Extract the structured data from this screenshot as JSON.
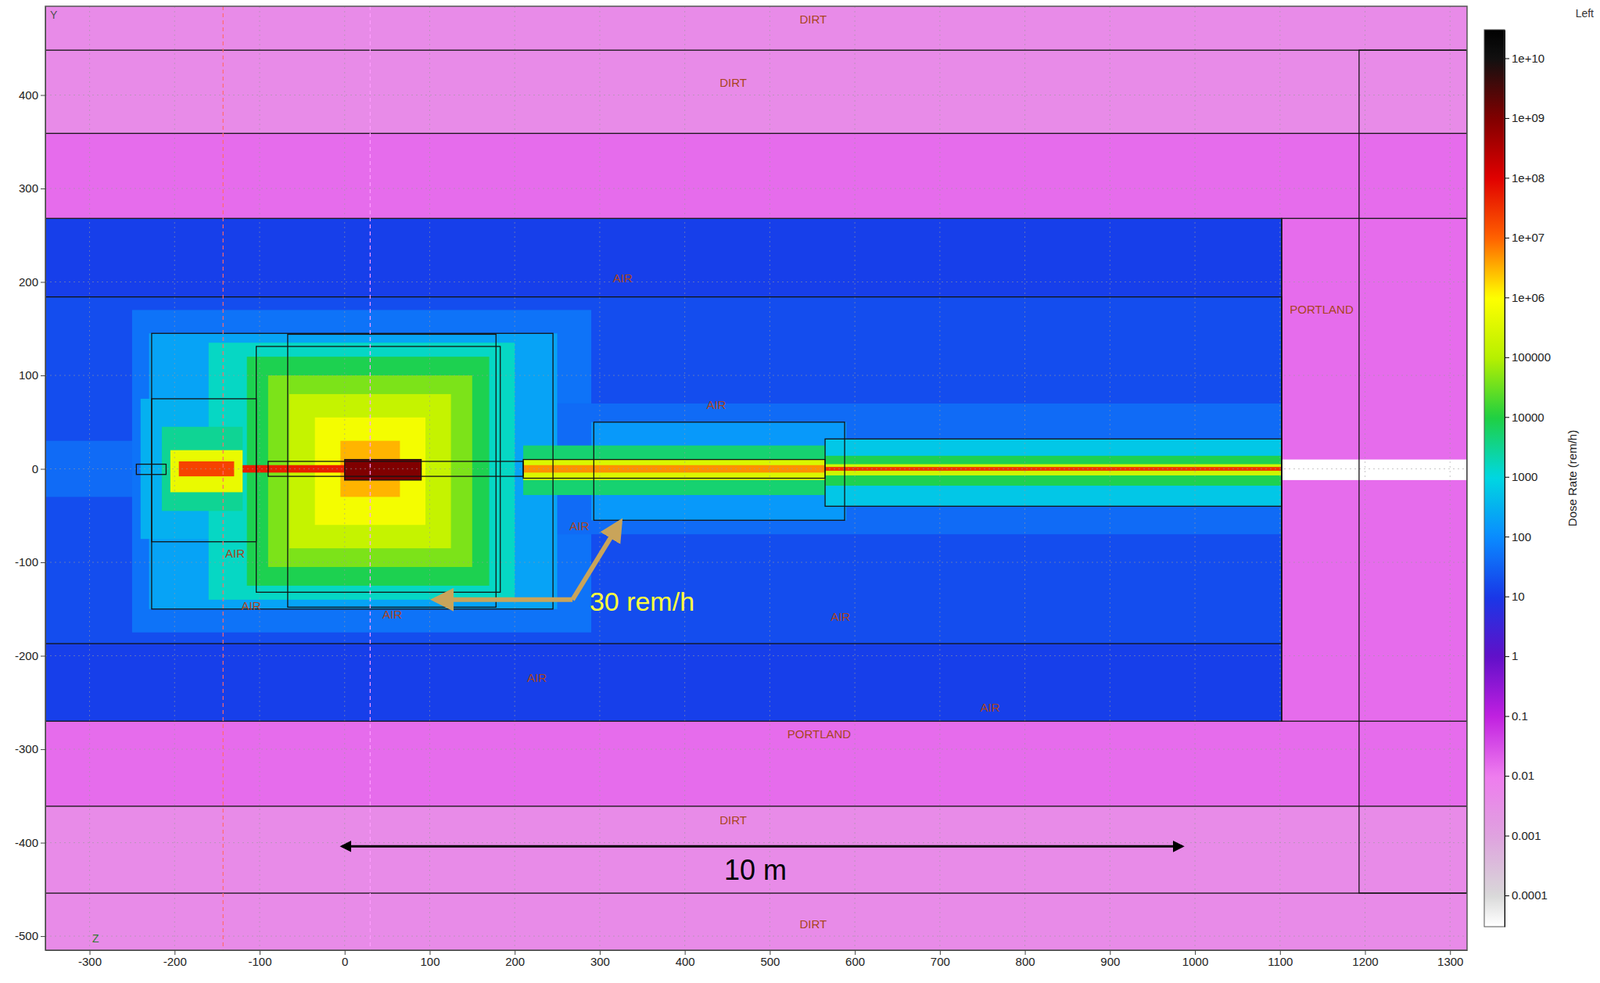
{
  "chart_data": {
    "type": "heatmap",
    "view_label": "Left",
    "axis_letters": {
      "x": "Z",
      "y": "Y"
    },
    "xlim": [
      -352,
      1320
    ],
    "ylim": [
      -515,
      495
    ],
    "xticks": [
      -300,
      -200,
      -100,
      0,
      100,
      200,
      300,
      400,
      500,
      600,
      700,
      800,
      900,
      1000,
      1100,
      1200,
      1300
    ],
    "yticks": [
      -500,
      -400,
      -300,
      -200,
      -100,
      0,
      100,
      200,
      300,
      400
    ],
    "grid": true,
    "colorbar": {
      "label": "Dose Rate (rem/h)",
      "log": true,
      "range": [
        3e-05,
        30000000000
      ],
      "ticks": [
        0.0001,
        0.001,
        0.01,
        0.1,
        1,
        10,
        100,
        1000,
        10000,
        100000,
        {
          "value": 1000000,
          "label": "1e+06"
        },
        {
          "value": 10000000,
          "label": "1e+07"
        },
        {
          "value": 100000000,
          "label": "1e+08"
        },
        {
          "value": 1000000000,
          "label": "1e+09"
        },
        {
          "value": 10000000000,
          "label": "1e+10"
        }
      ]
    },
    "cells": [
      {
        "x": [
          -352,
          1320
        ],
        "y": [
          359,
          495
        ],
        "value": 0.004
      },
      {
        "x": [
          -352,
          1320
        ],
        "y": [
          -515,
          -361
        ],
        "value": 0.004
      },
      {
        "x": [
          -352,
          1320
        ],
        "y": [
          268,
          359
        ],
        "value": 0.015
      },
      {
        "x": [
          -352,
          1320
        ],
        "y": [
          -361,
          -270
        ],
        "value": 0.015
      },
      {
        "x": [
          1102,
          1320
        ],
        "y": [
          -270,
          268
        ],
        "value": 0.015
      },
      {
        "x": [
          -352,
          1102
        ],
        "y": [
          -270,
          268
        ],
        "value": 12
      },
      {
        "x": [
          -352,
          1102
        ],
        "y": [
          -187,
          184
        ],
        "value": 18
      },
      {
        "x": [
          -352,
          -230
        ],
        "y": [
          -30,
          30
        ],
        "value": 40
      },
      {
        "x": [
          -250,
          290
        ],
        "y": [
          -175,
          170
        ],
        "value": 50
      },
      {
        "x": [
          200,
          1102
        ],
        "y": [
          -70,
          70
        ],
        "value": 40
      },
      {
        "x": [
          -230,
          250
        ],
        "y": [
          -150,
          145
        ],
        "value": 200
      },
      {
        "x": [
          -240,
          -110
        ],
        "y": [
          -75,
          75
        ],
        "value": 300
      },
      {
        "x": [
          290,
          590
        ],
        "y": [
          -55,
          50
        ],
        "value": 150
      },
      {
        "x": [
          565,
          1102
        ],
        "y": [
          -40,
          32
        ],
        "value": 600
      },
      {
        "x": [
          -160,
          200
        ],
        "y": [
          -140,
          135
        ],
        "value": 1500
      },
      {
        "x": [
          -215,
          -120
        ],
        "y": [
          -45,
          45
        ],
        "value": 3000
      },
      {
        "x": [
          210,
          565
        ],
        "y": [
          -28,
          25
        ],
        "value": 5000
      },
      {
        "x": [
          565,
          1102
        ],
        "y": [
          -18,
          14
        ],
        "value": 8000
      },
      {
        "x": [
          -115,
          170
        ],
        "y": [
          -125,
          120
        ],
        "value": 8000
      },
      {
        "x": [
          -90,
          150
        ],
        "y": [
          -105,
          100
        ],
        "value": 40000
      },
      {
        "x": [
          -65,
          125
        ],
        "y": [
          -85,
          80
        ],
        "value": 150000
      },
      {
        "x": [
          -205,
          -120
        ],
        "y": [
          -25,
          20
        ],
        "value": 500000
      },
      {
        "x": [
          -35,
          95
        ],
        "y": [
          -60,
          55
        ],
        "value": 700000
      },
      {
        "x": [
          210,
          565
        ],
        "y": [
          -12,
          10
        ],
        "value": 300000
      },
      {
        "x": [
          565,
          1102
        ],
        "y": [
          -7,
          5
        ],
        "value": 200000
      },
      {
        "x": [
          -5,
          65
        ],
        "y": [
          -30,
          30
        ],
        "value": 3000000
      },
      {
        "x": [
          -195,
          -130
        ],
        "y": [
          -8,
          8
        ],
        "value": 20000000
      },
      {
        "x": [
          210,
          565
        ],
        "y": [
          -4,
          4
        ],
        "value": 5000000
      },
      {
        "x": [
          565,
          1102
        ],
        "y": [
          -2,
          2
        ],
        "value": 30000000
      },
      {
        "x": [
          0,
          90
        ],
        "y": [
          -12,
          10
        ],
        "value": 1000000000
      },
      {
        "x": [
          -120,
          0
        ],
        "y": [
          -4,
          4
        ],
        "value": 50000000
      },
      {
        "x": [
          1102,
          1320
        ],
        "y": [
          -12,
          10
        ],
        "value": 3e-05
      }
    ],
    "outlines": [
      {
        "x": [
          -352,
          1102
        ],
        "y": [
          -270,
          268
        ]
      },
      {
        "x": [
          -352,
          1102
        ],
        "y": [
          -187,
          184
        ]
      },
      {
        "x": [
          -352,
          1320
        ],
        "y": [
          359,
          448
        ]
      },
      {
        "x": [
          -352,
          1320
        ],
        "y": [
          -454,
          -361
        ]
      },
      {
        "x": [
          1193,
          1320
        ],
        "y": [
          -454,
          448
        ]
      },
      {
        "x": [
          1102,
          1320
        ],
        "y": [
          -270,
          268
        ]
      },
      {
        "x": [
          -227,
          245
        ],
        "y": [
          -150,
          145
        ]
      },
      {
        "x": [
          -67,
          178
        ],
        "y": [
          -148,
          144
        ]
      },
      {
        "x": [
          -104,
          183
        ],
        "y": [
          -132,
          131
        ]
      },
      {
        "x": [
          -227,
          -104
        ],
        "y": [
          -78,
          75
        ]
      },
      {
        "x": [
          -245,
          -210
        ],
        "y": [
          -6,
          5
        ]
      },
      {
        "x": [
          210,
          565
        ],
        "y": [
          -10,
          10
        ]
      },
      {
        "x": [
          293,
          588
        ],
        "y": [
          -55,
          50
        ]
      },
      {
        "x": [
          565,
          1102
        ],
        "y": [
          -40,
          32
        ]
      },
      {
        "x": [
          -90,
          210
        ],
        "y": [
          -8,
          8
        ]
      },
      {
        "x": [
          0,
          90
        ],
        "y": [
          -12,
          10
        ]
      }
    ],
    "guides_x": [
      -143,
      30
    ],
    "region_labels": [
      {
        "text": "DIRT",
        "x": 551,
        "y": 481
      },
      {
        "text": "DIRT",
        "x": 457,
        "y": 413
      },
      {
        "text": "AIR",
        "x": 327,
        "y": 204
      },
      {
        "text": "PORTLAND",
        "x": 1149,
        "y": 171
      },
      {
        "text": "AIR",
        "x": 437,
        "y": 69
      },
      {
        "text": "AIR",
        "x": 276,
        "y": -61
      },
      {
        "text": "AIR",
        "x": -129,
        "y": -90
      },
      {
        "text": "AIR",
        "x": -110,
        "y": -146
      },
      {
        "text": "AIR",
        "x": 56,
        "y": -156
      },
      {
        "text": "AIR",
        "x": 583,
        "y": -158
      },
      {
        "text": "AIR",
        "x": 226,
        "y": -223
      },
      {
        "text": "AIR",
        "x": 759,
        "y": -255
      },
      {
        "text": "PORTLAND",
        "x": 558,
        "y": -284
      },
      {
        "text": "DIRT",
        "x": 457,
        "y": -376
      },
      {
        "text": "DIRT",
        "x": 551,
        "y": -487
      }
    ],
    "annotations": [
      {
        "text": "30 rem/h",
        "x": 288,
        "y": -142,
        "arrow_from": [
          268,
          -140
        ],
        "arrow_to": [
          [
            106,
            -140
          ],
          [
            324,
            -57
          ]
        ]
      },
      {
        "text": "10 m",
        "x": 483,
        "y": -429,
        "span": [
          -3,
          985
        ],
        "span_y": -404
      }
    ]
  }
}
